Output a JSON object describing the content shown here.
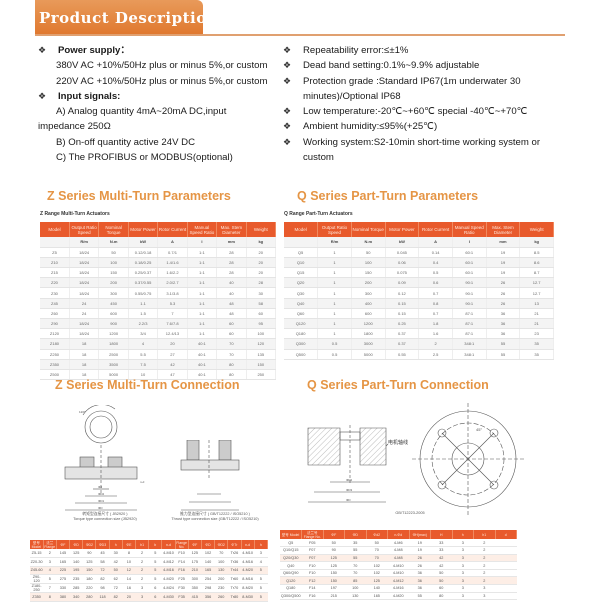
{
  "header": {
    "title": "Product Description"
  },
  "left_list": [
    {
      "bullet": true,
      "bold": true,
      "text": "Power supply："
    },
    {
      "indent": true,
      "text": "380V AC +10%/50Hz plus or minus 5%,or custom"
    },
    {
      "indent": true,
      "text": "220V AC +10%/50Hz plus or minus 5%,or custom"
    },
    {
      "bullet": true,
      "bold": true,
      "text": "Input signals:"
    },
    {
      "indent": true,
      "text": "A)  Analog quantity 4mA~20mA DC,input"
    },
    {
      "text": "impedance 250Ω"
    },
    {
      "indent": true,
      "text": "B)  On-off quantity active 24V DC"
    },
    {
      "indent": true,
      "text": "C)  The PROFIBUS or MODBUS(optional)"
    }
  ],
  "right_list": [
    "Repeatability error:≤±1%",
    "Dead band setting:0.1%~9.9% adjustable",
    "Protection grade :Standard IP67(1m underwater 30 minutes)/Optional IP68",
    "Low temperature:-20℃~+60℃ special -40℃~+70℃",
    "Ambient humidity:≤95%(+25℃)",
    "Working system:S2-10min short-time working system or custom"
  ],
  "z_params": {
    "title": "Z Series Multi-Turn Parameters",
    "subtitle": "Z Range Multi-Turn Actuators",
    "headers": [
      "Model",
      "Output Ratio Speed",
      "Nominal Torque",
      "Motor Power",
      "Rotor Current",
      "Manual Speed Ratio",
      "Max. Stem Diameter",
      "Weight"
    ],
    "units": [
      "",
      "R/m",
      "N.m",
      "kW",
      "A",
      "I",
      "mm",
      "kg"
    ],
    "rows": [
      [
        "Z5",
        "18/24",
        "50",
        "0.12/0.18",
        "0.7/1",
        "1:1",
        "28",
        "20"
      ],
      [
        "Z10",
        "18/24",
        "100",
        "0.18/0.25",
        "1.4/1.6",
        "1:1",
        "28",
        "20"
      ],
      [
        "Z15",
        "18/24",
        "150",
        "0.25/0.37",
        "1.6/2.2",
        "1:1",
        "28",
        "20"
      ],
      [
        "Z20",
        "18/24",
        "200",
        "0.37/0.55",
        "2.0/2.7",
        "1:1",
        "40",
        "28"
      ],
      [
        "Z30",
        "18/24",
        "300",
        "0.55/0.75",
        "3.1/3.8",
        "1:1",
        "40",
        "30"
      ],
      [
        "Z45",
        "24",
        "450",
        "1.1",
        "5.3",
        "1:1",
        "48",
        "58"
      ],
      [
        "Z60",
        "24",
        "600",
        "1.5",
        "7",
        "1:1",
        "48",
        "60"
      ],
      [
        "Z90",
        "18/24",
        "900",
        "2.2/3",
        "7.6/7.8",
        "1:1",
        "60",
        "95"
      ],
      [
        "Z120",
        "18/24",
        "1200",
        "3/4",
        "12.4/13",
        "1:1",
        "60",
        "100"
      ],
      [
        "Z180",
        "18",
        "1800",
        "4",
        "20",
        "40:1",
        "70",
        "120"
      ],
      [
        "Z250",
        "18",
        "2500",
        "5.5",
        "27",
        "40:1",
        "70",
        "135"
      ],
      [
        "Z350",
        "18",
        "3500",
        "7.5",
        "42",
        "40:1",
        "80",
        "150"
      ],
      [
        "Z500",
        "18",
        "5000",
        "10",
        "47",
        "40:1",
        "80",
        "250"
      ]
    ]
  },
  "q_params": {
    "title": "Q Series Part-Turn Parameters",
    "subtitle": "Q Range Part-Turn Actuators",
    "headers": [
      "Model",
      "Output Ratio Speed",
      "Nominal Torque",
      "Motor Power",
      "Rotor Current",
      "Manual Speed Ratio",
      "Max. Stem Diameter",
      "Weight"
    ],
    "units": [
      "",
      "R/m",
      "N.m",
      "kW",
      "A",
      "I",
      "mm",
      "kg"
    ],
    "rows": [
      [
        "Q5",
        "1",
        "50",
        "0.045",
        "0.14",
        "60:1",
        "19",
        "8.5"
      ],
      [
        "Q10",
        "1",
        "100",
        "0.06",
        "0.4",
        "60:1",
        "19",
        "8.6"
      ],
      [
        "Q15",
        "1",
        "150",
        "0.075",
        "0.5",
        "60:1",
        "19",
        "8.7"
      ],
      [
        "Q20",
        "1",
        "200",
        "0.09",
        "0.6",
        "90:1",
        "26",
        "12.7"
      ],
      [
        "Q30",
        "1",
        "300",
        "0.12",
        "0.7",
        "90:1",
        "26",
        "12.7"
      ],
      [
        "Q40",
        "1",
        "400",
        "0.15",
        "0.8",
        "90:1",
        "26",
        "13"
      ],
      [
        "Q60",
        "1",
        "600",
        "0.15",
        "0.7",
        "87:1",
        "36",
        "21"
      ],
      [
        "Q120",
        "1",
        "1200",
        "0.25",
        "1.8",
        "87:1",
        "36",
        "21"
      ],
      [
        "Q180",
        "1",
        "1800",
        "0.37",
        "1.6",
        "87:1",
        "36",
        "23"
      ],
      [
        "Q300",
        "0.5",
        "3000",
        "0.37",
        "2",
        "348:1",
        "55",
        "35"
      ],
      [
        "Q500",
        "0.5",
        "5000",
        "0.55",
        "2.5",
        "348:1",
        "55",
        "35"
      ]
    ]
  },
  "z_conn": {
    "title": "Z Series Multi-Turn Connection",
    "caption_left_cn": "转矩型连接尺寸 ( JB2920 )",
    "caption_left": "Torque type connection size (JB2920)",
    "caption_right_cn": "推力型连接尺寸 ( GB/T12222 / ISO5210 )",
    "caption_right": "Thrust type connection size (GB/T12222 / ISO5210)",
    "dim_labels": [
      "ΦD",
      "ΦD1",
      "ΦD2",
      "Φd",
      "n-d",
      "120°"
    ],
    "headers": [
      "型号 Model",
      "法兰 Flange",
      "ΦF",
      "ΦD",
      "ΦD2",
      "ΦD3",
      "h",
      "ΦE",
      "h1",
      "b",
      "n-d",
      "Flange No.",
      "ΦF",
      "ΦD",
      "ΦD2",
      "ΦTr",
      "n-d",
      "h"
    ],
    "rows": [
      [
        "Z5-15",
        "2",
        "145",
        "125",
        "90",
        "45",
        "30",
        "8",
        "2",
        "5",
        "4-M10",
        "F10",
        "125",
        "102",
        "70",
        "Tr26",
        "4-M10",
        "3"
      ],
      [
        "Z20-30",
        "3",
        "165",
        "140",
        "125",
        "58",
        "42",
        "10",
        "2",
        "5",
        "4-M12",
        "F14",
        "175",
        "140",
        "100",
        "Tr36",
        "4-M16",
        "4"
      ],
      [
        "Z45-60",
        "4",
        "225",
        "195",
        "150",
        "72",
        "50",
        "12",
        "2",
        "5",
        "4-M16",
        "F16",
        "210",
        "165",
        "130",
        "Tr44",
        "4-M20",
        "5"
      ],
      [
        "Z90-120",
        "5",
        "275",
        "235",
        "180",
        "82",
        "62",
        "14",
        "2",
        "5",
        "4-M20",
        "F25",
        "300",
        "254",
        "200",
        "Tr60",
        "8-M16",
        "5"
      ],
      [
        "Z180-250",
        "7",
        "330",
        "285",
        "220",
        "98",
        "72",
        "16",
        "3",
        "6",
        "4-M24",
        "F30",
        "350",
        "298",
        "230",
        "Tr70",
        "8-M20",
        "5"
      ],
      [
        "Z350",
        "8",
        "380",
        "340",
        "280",
        "118",
        "82",
        "20",
        "3",
        "6",
        "4-M30",
        "F35",
        "415",
        "356",
        "260",
        "Tr80",
        "8-M30",
        "5"
      ]
    ]
  },
  "q_conn": {
    "title": "Q Series Part-Turn Connection",
    "caption": "GB/T12223-2005",
    "dim_labels": [
      "45°",
      "电机轴线",
      "ΦD1",
      "ΦD2",
      "ΦD3",
      "ΦD"
    ],
    "headers": [
      "型号 Model",
      "法兰号 Flange No.",
      "ΦF",
      "ΦD",
      "Φd2",
      "n-Φd",
      "ΦH(max)",
      "H",
      "h",
      "h1",
      "d"
    ],
    "rows": [
      [
        "Q5",
        "F05",
        "50",
        "35",
        "50",
        "4-M6",
        "19",
        "33",
        "3",
        "2",
        ""
      ],
      [
        "Q10/Q15",
        "F07",
        "90",
        "55",
        "70",
        "4-M8",
        "19",
        "33",
        "3",
        "2",
        ""
      ],
      [
        "Q20/Q30",
        "F07",
        "125",
        "55",
        "70",
        "4-M8",
        "26",
        "42",
        "3",
        "2",
        ""
      ],
      [
        "Q40",
        "F10",
        "125",
        "70",
        "102",
        "4-M10",
        "26",
        "42",
        "3",
        "2",
        ""
      ],
      [
        "Q60/Q90",
        "F10",
        "150",
        "70",
        "102",
        "4-M10",
        "36",
        "50",
        "3",
        "2",
        ""
      ],
      [
        "Q120",
        "F12",
        "150",
        "85",
        "125",
        "4-M12",
        "36",
        "50",
        "3",
        "2",
        ""
      ],
      [
        "Q180",
        "F14",
        "197",
        "100",
        "140",
        "4-M16",
        "36",
        "60",
        "3",
        "3",
        ""
      ],
      [
        "Q300/Q500",
        "F16",
        "215",
        "130",
        "165",
        "4-M20",
        "55",
        "80",
        "3",
        "3",
        ""
      ]
    ]
  },
  "colors": {
    "accent": "#e0782e",
    "table_header": "#e85a2c",
    "section_title": "#e59545"
  }
}
